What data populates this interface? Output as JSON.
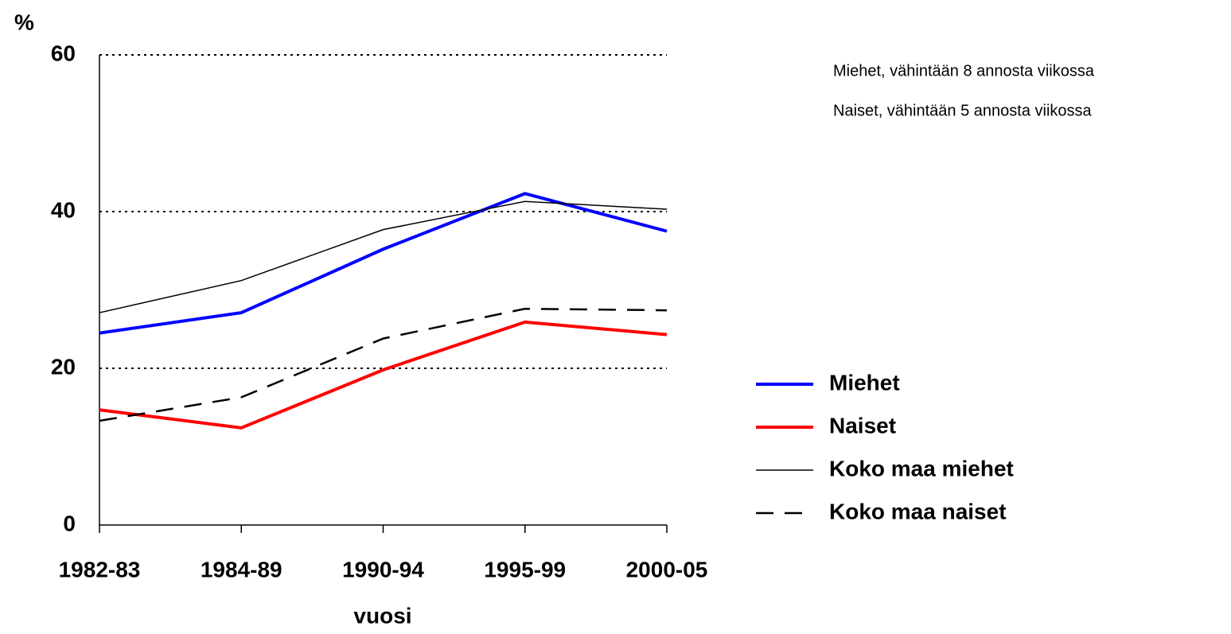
{
  "chart_data": {
    "type": "line",
    "y_label": "%",
    "x_label": "vuosi",
    "annotations": [
      "Miehet, vähintään 8 annosta viikossa",
      "Naiset, vähintään 5 annosta viikossa"
    ],
    "categories": [
      "1982-83",
      "1984-89",
      "1990-94",
      "1995-99",
      "2000-05"
    ],
    "series": [
      {
        "name": "Miehet",
        "color": "#0000ff",
        "linewidth": 4,
        "linestyle": "solid",
        "values": [
          24.5,
          27.1,
          35.2,
          42.3,
          37.5
        ]
      },
      {
        "name": "Naiset",
        "color": "#ff0000",
        "linewidth": 4,
        "linestyle": "solid",
        "values": [
          14.7,
          12.4,
          19.8,
          25.9,
          24.3
        ]
      },
      {
        "name": "Koko maa miehet",
        "color": "#000000",
        "linewidth": 1.5,
        "linestyle": "solid",
        "values": [
          27.1,
          31.2,
          37.7,
          41.3,
          40.3
        ]
      },
      {
        "name": "Koko maa naiset",
        "color": "#000000",
        "linewidth": 2.5,
        "linestyle": "dashed",
        "values": [
          13.3,
          16.3,
          23.8,
          27.6,
          27.4
        ]
      }
    ],
    "ylim": [
      0,
      60
    ],
    "yticks": [
      0,
      20,
      40,
      60
    ],
    "grid": true,
    "legend": "right"
  }
}
